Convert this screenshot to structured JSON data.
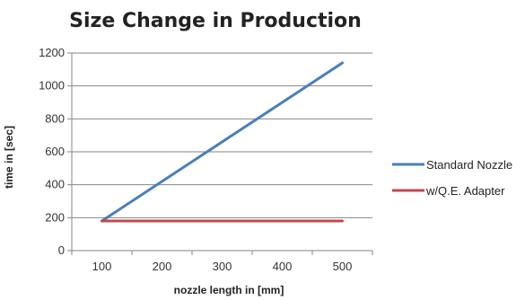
{
  "chart_data": {
    "type": "line",
    "title": "Size Change in Production",
    "xlabel": "nozzle length in [mm]",
    "ylabel": "time in [sec]",
    "x_ticks": [
      100,
      200,
      300,
      400,
      500
    ],
    "y_ticks": [
      0,
      200,
      400,
      600,
      800,
      1000,
      1200
    ],
    "xlim": [
      50,
      550
    ],
    "ylim": [
      0,
      1200
    ],
    "grid": true,
    "legend_position": "right",
    "series": [
      {
        "name": "Standard Nozzle",
        "color": "#4a7ebb",
        "x": [
          100,
          500
        ],
        "y": [
          180,
          1140
        ]
      },
      {
        "name": "w/Q.E. Adapter",
        "color": "#be4b48",
        "x": [
          100,
          500
        ],
        "y": [
          180,
          180
        ]
      }
    ]
  }
}
